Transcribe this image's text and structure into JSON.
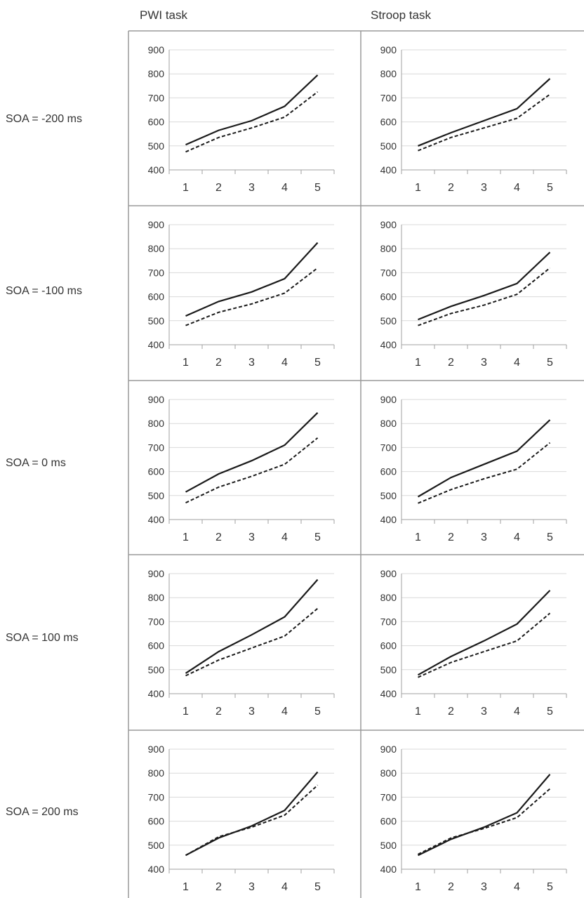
{
  "columns": [
    "PWI task",
    "Stroop task"
  ],
  "rows": [
    "SOA = -200 ms",
    "SOA = -100 ms",
    "SOA = 0 ms",
    "SOA = 100 ms",
    "SOA = 200 ms"
  ],
  "colors": {
    "line": "#1a1a1a",
    "grid": "#d9d9d9",
    "border": "#9a9a9a",
    "axis": "#a0a0a0"
  },
  "chart_data": [
    {
      "type": "line",
      "panel": "PWI task / SOA = -200 ms",
      "categories": [
        1,
        2,
        3,
        4,
        5
      ],
      "ylim": [
        400,
        900
      ],
      "yticks": [
        400,
        500,
        600,
        700,
        800,
        900
      ],
      "series": [
        {
          "values": [
            505,
            565,
            605,
            665,
            795
          ]
        },
        {
          "values": [
            475,
            535,
            575,
            620,
            725
          ],
          "dashed": true
        }
      ]
    },
    {
      "type": "line",
      "panel": "Stroop task / SOA = -200 ms",
      "categories": [
        1,
        2,
        3,
        4,
        5
      ],
      "ylim": [
        400,
        900
      ],
      "yticks": [
        400,
        500,
        600,
        700,
        800,
        900
      ],
      "series": [
        {
          "values": [
            500,
            555,
            605,
            655,
            780
          ]
        },
        {
          "values": [
            480,
            535,
            575,
            615,
            715
          ],
          "dashed": true
        }
      ]
    },
    {
      "type": "line",
      "panel": "PWI task / SOA = -100 ms",
      "categories": [
        1,
        2,
        3,
        4,
        5
      ],
      "ylim": [
        400,
        900
      ],
      "yticks": [
        400,
        500,
        600,
        700,
        800,
        900
      ],
      "series": [
        {
          "values": [
            520,
            580,
            620,
            675,
            825
          ]
        },
        {
          "values": [
            480,
            535,
            570,
            615,
            720
          ],
          "dashed": true
        }
      ]
    },
    {
      "type": "line",
      "panel": "Stroop task / SOA = -100 ms",
      "categories": [
        1,
        2,
        3,
        4,
        5
      ],
      "ylim": [
        400,
        900
      ],
      "yticks": [
        400,
        500,
        600,
        700,
        800,
        900
      ],
      "series": [
        {
          "values": [
            505,
            560,
            605,
            655,
            785
          ]
        },
        {
          "values": [
            480,
            530,
            565,
            610,
            720
          ],
          "dashed": true
        }
      ]
    },
    {
      "type": "line",
      "panel": "PWI task / SOA = 0 ms",
      "categories": [
        1,
        2,
        3,
        4,
        5
      ],
      "ylim": [
        400,
        900
      ],
      "yticks": [
        400,
        500,
        600,
        700,
        800,
        900
      ],
      "series": [
        {
          "values": [
            515,
            590,
            645,
            710,
            845
          ]
        },
        {
          "values": [
            470,
            535,
            580,
            630,
            740
          ],
          "dashed": true
        }
      ]
    },
    {
      "type": "line",
      "panel": "Stroop task / SOA = 0 ms",
      "categories": [
        1,
        2,
        3,
        4,
        5
      ],
      "ylim": [
        400,
        900
      ],
      "yticks": [
        400,
        500,
        600,
        700,
        800,
        900
      ],
      "series": [
        {
          "values": [
            495,
            575,
            630,
            685,
            815
          ]
        },
        {
          "values": [
            468,
            525,
            570,
            610,
            720
          ],
          "dashed": true
        }
      ]
    },
    {
      "type": "line",
      "panel": "PWI task / SOA = 100 ms",
      "categories": [
        1,
        2,
        3,
        4,
        5
      ],
      "ylim": [
        400,
        900
      ],
      "yticks": [
        400,
        500,
        600,
        700,
        800,
        900
      ],
      "series": [
        {
          "values": [
            485,
            575,
            645,
            720,
            875
          ]
        },
        {
          "values": [
            475,
            540,
            590,
            640,
            755
          ],
          "dashed": true
        }
      ]
    },
    {
      "type": "line",
      "panel": "Stroop task / SOA = 100 ms",
      "categories": [
        1,
        2,
        3,
        4,
        5
      ],
      "ylim": [
        400,
        900
      ],
      "yticks": [
        400,
        500,
        600,
        700,
        800,
        900
      ],
      "series": [
        {
          "values": [
            478,
            555,
            620,
            690,
            830
          ]
        },
        {
          "values": [
            468,
            530,
            575,
            620,
            735
          ],
          "dashed": true
        }
      ]
    },
    {
      "type": "line",
      "panel": "PWI task / SOA = 200 ms",
      "categories": [
        1,
        2,
        3,
        4,
        5
      ],
      "ylim": [
        400,
        900
      ],
      "yticks": [
        400,
        500,
        600,
        700,
        800,
        900
      ],
      "series": [
        {
          "values": [
            458,
            530,
            580,
            645,
            805
          ]
        },
        {
          "values": [
            458,
            535,
            575,
            625,
            750
          ],
          "dashed": true
        }
      ]
    },
    {
      "type": "line",
      "panel": "Stroop task / SOA = 200 ms",
      "categories": [
        1,
        2,
        3,
        4,
        5
      ],
      "ylim": [
        400,
        900
      ],
      "yticks": [
        400,
        500,
        600,
        700,
        800,
        900
      ],
      "series": [
        {
          "values": [
            458,
            525,
            575,
            635,
            795
          ]
        },
        {
          "values": [
            462,
            530,
            570,
            615,
            735
          ],
          "dashed": true
        }
      ]
    }
  ]
}
